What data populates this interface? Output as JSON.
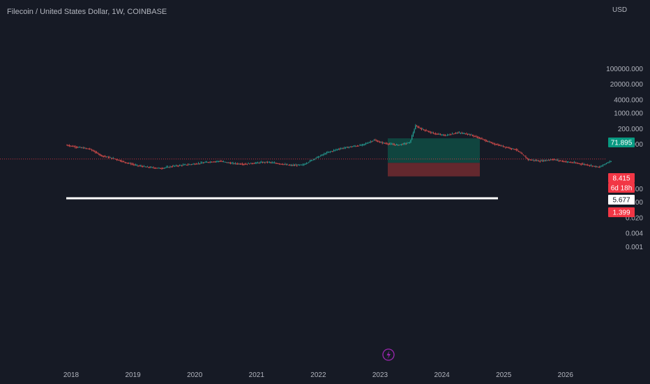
{
  "header": {
    "title": "Filecoin / United States Dollar, 1W, COINBASE",
    "currency": "USD"
  },
  "chart_data": {
    "type": "candlestick",
    "scale": "log",
    "y_ticks": [
      "100000.000",
      "20000.000",
      "4000.000",
      "1000.000",
      "200.000",
      "40.000",
      "0.400",
      "0.100",
      "0.020",
      "0.004",
      "0.001"
    ],
    "x_ticks": [
      "2018",
      "2019",
      "2020",
      "2021",
      "2022",
      "2023",
      "2024",
      "2025",
      "2026"
    ],
    "price_tags": [
      {
        "name": "target",
        "label": "71.895",
        "color": "#089981"
      },
      {
        "name": "current",
        "label": "8.415",
        "color": "#f23645"
      },
      {
        "name": "countdown",
        "label": "6d 18h",
        "color": "#f23645"
      },
      {
        "name": "entry",
        "label": "5.677",
        "color": "#ffffff"
      },
      {
        "name": "stop",
        "label": "1.399",
        "color": "#f23645"
      }
    ],
    "support_line": {
      "color": "#ffffff"
    },
    "position": {
      "target_color": "#0f4a42",
      "stop_color": "#6b2a30"
    },
    "series_path": [
      [
        0,
        36
      ],
      [
        8,
        30
      ],
      [
        20,
        24
      ],
      [
        30,
        12
      ],
      [
        40,
        9
      ],
      [
        50,
        6
      ],
      [
        60,
        4.3
      ],
      [
        70,
        3.6
      ],
      [
        80,
        3.2
      ],
      [
        90,
        4.0
      ],
      [
        100,
        4.6
      ],
      [
        110,
        5.2
      ],
      [
        120,
        6.2
      ],
      [
        130,
        6.8
      ],
      [
        140,
        5.4
      ],
      [
        150,
        5.0
      ],
      [
        160,
        5.6
      ],
      [
        170,
        6.2
      ],
      [
        180,
        5.2
      ],
      [
        190,
        4.4
      ],
      [
        200,
        4.6
      ],
      [
        210,
        9
      ],
      [
        220,
        16
      ],
      [
        230,
        24
      ],
      [
        240,
        30
      ],
      [
        250,
        36
      ],
      [
        260,
        60
      ],
      [
        265,
        48
      ],
      [
        270,
        42
      ],
      [
        280,
        36
      ],
      [
        290,
        46
      ],
      [
        295,
        260
      ],
      [
        300,
        190
      ],
      [
        310,
        120
      ],
      [
        320,
        96
      ],
      [
        330,
        130
      ],
      [
        340,
        110
      ],
      [
        350,
        70
      ],
      [
        360,
        42
      ],
      [
        370,
        30
      ],
      [
        380,
        22
      ],
      [
        390,
        8
      ],
      [
        400,
        6.8
      ],
      [
        410,
        8.2
      ],
      [
        420,
        6.6
      ],
      [
        430,
        5.6
      ],
      [
        440,
        4.6
      ],
      [
        450,
        3.6
      ],
      [
        455,
        5.2
      ],
      [
        460,
        7.2
      ]
    ]
  }
}
